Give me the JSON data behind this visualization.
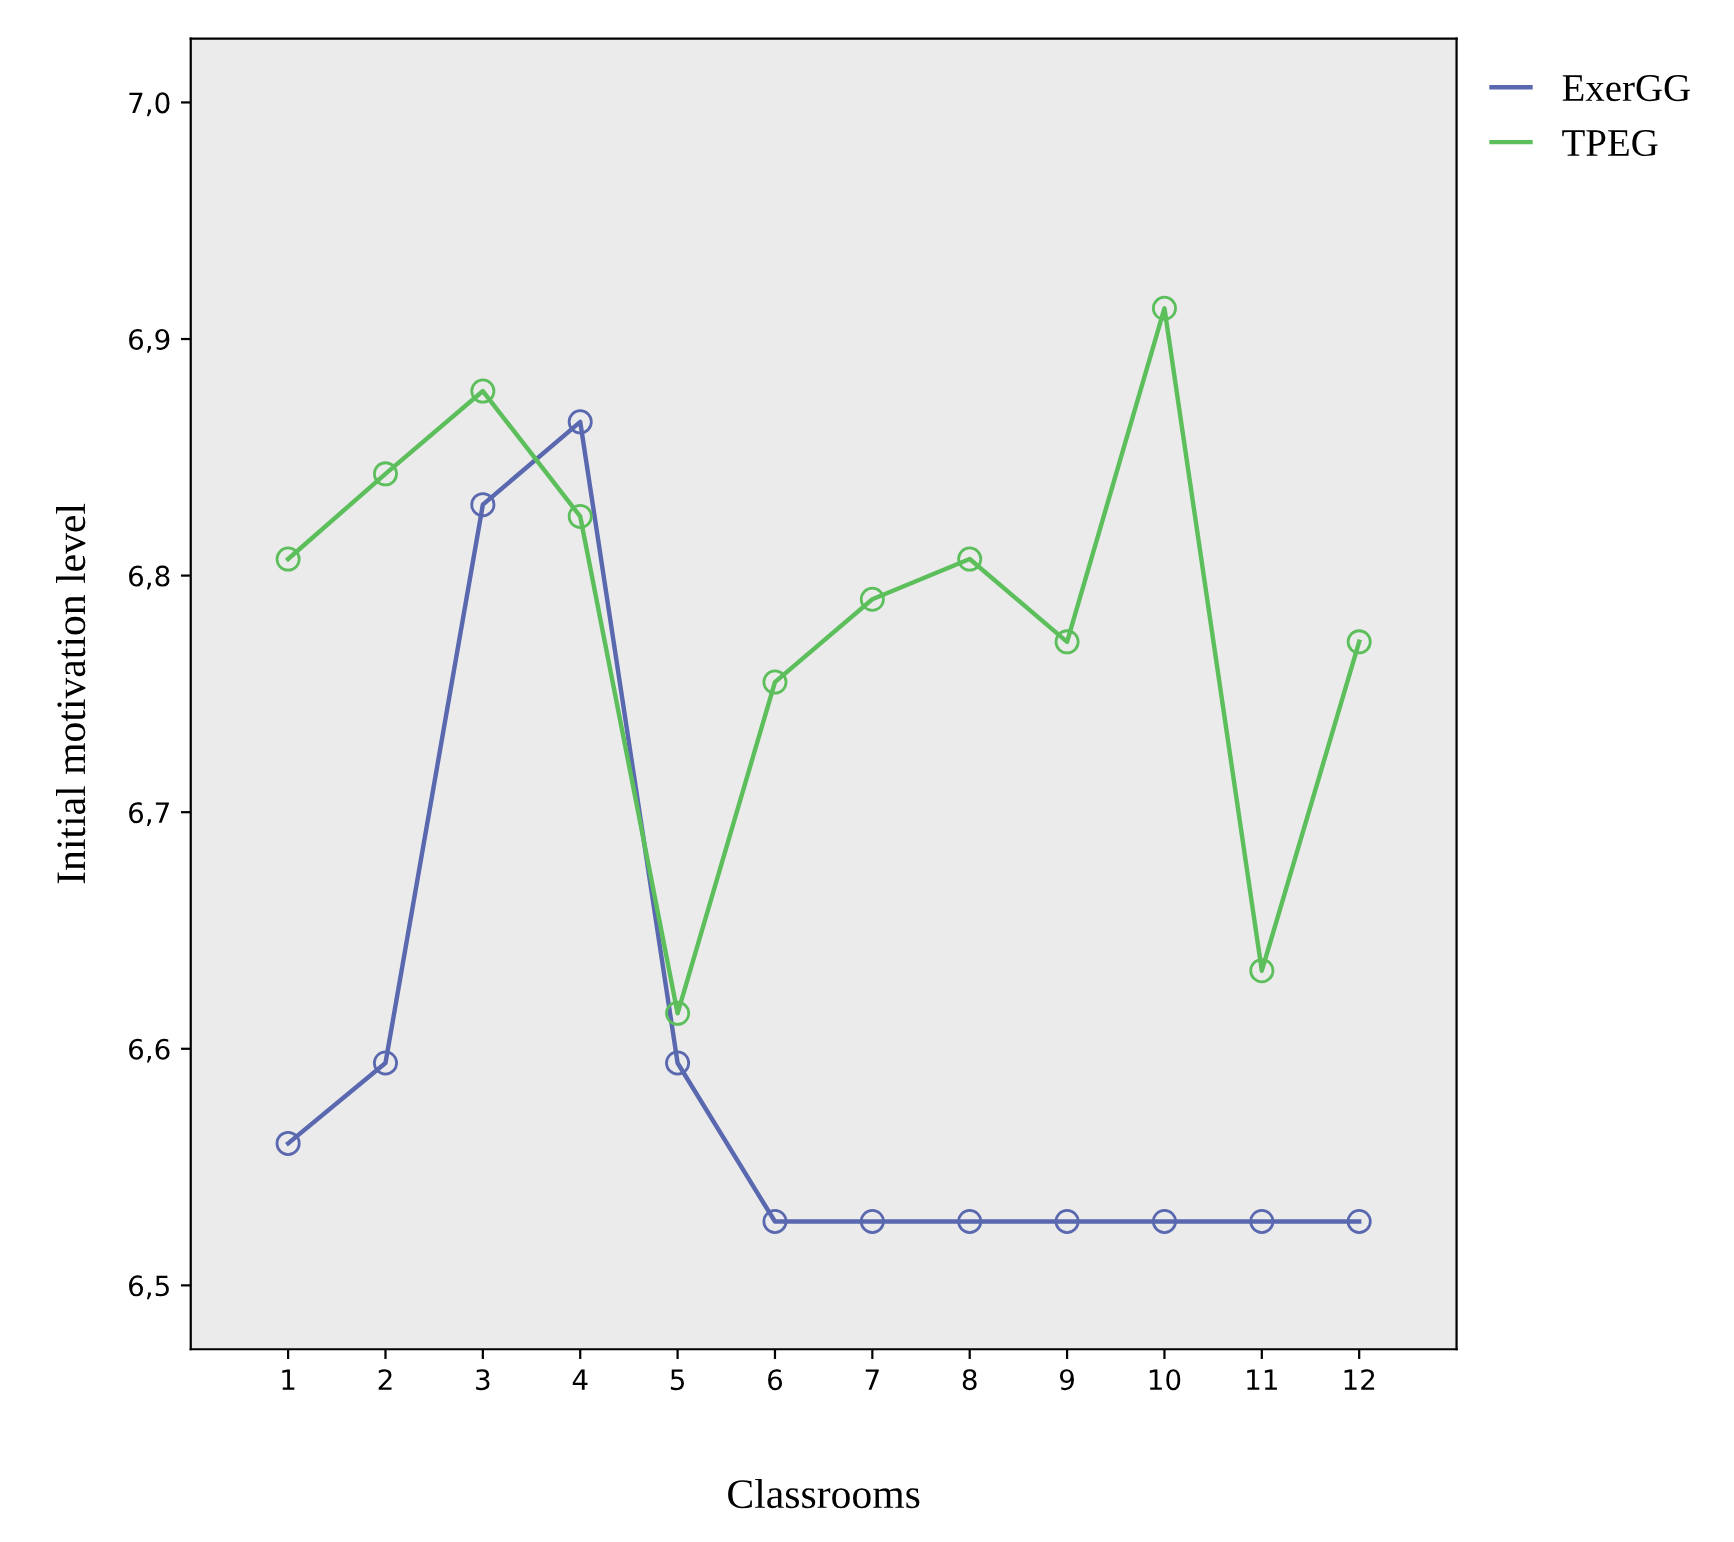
{
  "chart_data": {
    "type": "line",
    "xlabel": "Classrooms",
    "ylabel": "Initial motivation level",
    "x": [
      1,
      2,
      3,
      4,
      5,
      6,
      7,
      8,
      9,
      10,
      11,
      12
    ],
    "series": [
      {
        "name": "ExerGG",
        "color": "#5a68b0",
        "values": [
          6.56,
          6.594,
          6.83,
          6.865,
          6.594,
          6.527,
          6.527,
          6.527,
          6.527,
          6.527,
          6.527,
          6.527
        ]
      },
      {
        "name": "TPEG",
        "color": "#5cbf5c",
        "values": [
          6.807,
          6.843,
          6.878,
          6.825,
          6.615,
          6.755,
          6.79,
          6.807,
          6.772,
          6.913,
          6.633,
          6.772
        ]
      }
    ],
    "xlim": [
      0,
      13
    ],
    "xticks": [
      1,
      2,
      3,
      4,
      5,
      6,
      7,
      8,
      9,
      10,
      11,
      12
    ],
    "ylim": [
      6.473,
      7.027
    ],
    "yticks": [
      {
        "value": 6.5,
        "label": "6,5"
      },
      {
        "value": 6.6,
        "label": "6,6"
      },
      {
        "value": 6.7,
        "label": "6,7"
      },
      {
        "value": 6.8,
        "label": "6,8"
      },
      {
        "value": 6.9,
        "label": "6,9"
      },
      {
        "value": 7.0,
        "label": "7,0"
      }
    ],
    "marker": "circle",
    "line_style": "solid",
    "legend": "top right",
    "grid": false
  }
}
